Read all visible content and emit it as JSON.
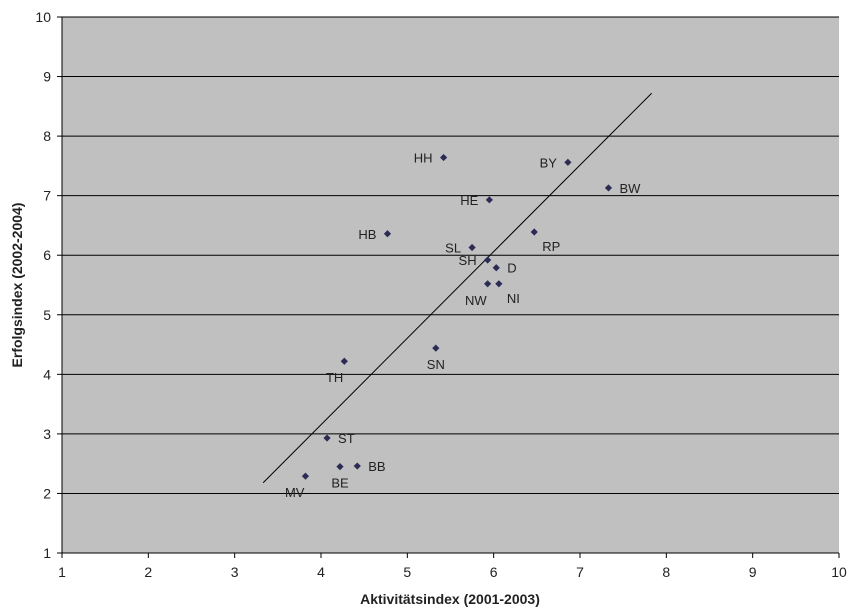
{
  "chart_data": {
    "type": "scatter",
    "xlabel": "Aktivitätsindex (2001-2003)",
    "ylabel": "Erfolgsindex (2002-2004)",
    "xlim": [
      1,
      10
    ],
    "ylim": [
      1,
      10
    ],
    "xticks": [
      "1",
      "2",
      "3",
      "4",
      "5",
      "6",
      "7",
      "8",
      "9",
      "10"
    ],
    "yticks": [
      "1",
      "2",
      "3",
      "4",
      "5",
      "6",
      "7",
      "8",
      "9",
      "10"
    ],
    "grid": "horizontal",
    "colors": {
      "plot_background": "#c0c0c0",
      "marker": "#2b2b55",
      "line": "#000000",
      "grid": "#000000"
    },
    "points": [
      {
        "label": "HH",
        "x": 5.42,
        "y": 7.64,
        "label_side": "left"
      },
      {
        "label": "BY",
        "x": 6.86,
        "y": 7.56,
        "label_side": "left"
      },
      {
        "label": "BW",
        "x": 7.33,
        "y": 7.13,
        "label_side": "right"
      },
      {
        "label": "HE",
        "x": 5.95,
        "y": 6.93,
        "label_side": "left"
      },
      {
        "label": "HB",
        "x": 4.77,
        "y": 6.36,
        "label_side": "left"
      },
      {
        "label": "RP",
        "x": 6.47,
        "y": 6.39,
        "label_side": "below-right"
      },
      {
        "label": "SL",
        "x": 5.75,
        "y": 6.13,
        "label_side": "left"
      },
      {
        "label": "SH",
        "x": 5.93,
        "y": 5.92,
        "label_side": "left"
      },
      {
        "label": "D",
        "x": 6.03,
        "y": 5.79,
        "label_side": "right"
      },
      {
        "label": "NW",
        "x": 5.93,
        "y": 5.52,
        "label_side": "below-left"
      },
      {
        "label": "NI",
        "x": 6.06,
        "y": 5.52,
        "label_side": "below-right"
      },
      {
        "label": "TH",
        "x": 4.27,
        "y": 4.22,
        "label_side": "below-left"
      },
      {
        "label": "SN",
        "x": 5.33,
        "y": 4.44,
        "label_side": "below"
      },
      {
        "label": "ST",
        "x": 4.07,
        "y": 2.93,
        "label_side": "right"
      },
      {
        "label": "BB",
        "x": 4.42,
        "y": 2.46,
        "label_side": "right"
      },
      {
        "label": "BE",
        "x": 4.22,
        "y": 2.45,
        "label_side": "below"
      },
      {
        "label": "MV",
        "x": 3.82,
        "y": 2.29,
        "label_side": "below-left"
      }
    ],
    "trendline": {
      "x1": 3.33,
      "y1": 2.18,
      "x2": 7.83,
      "y2": 8.72
    }
  }
}
